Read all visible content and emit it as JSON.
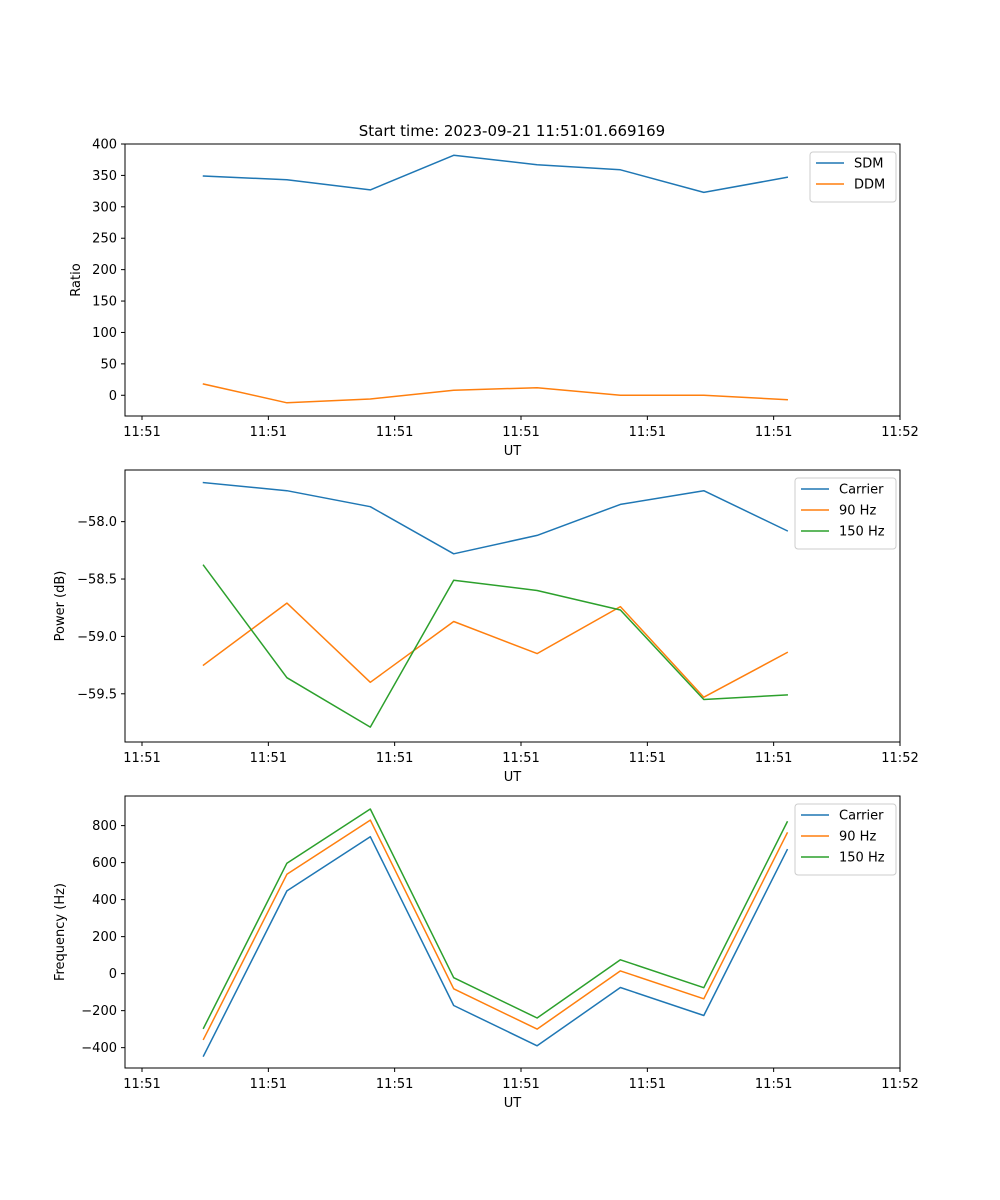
{
  "figure": {
    "title": "Start time: 2023-09-21 11:51:01.669169"
  },
  "chart_data": [
    {
      "type": "line",
      "ylabel": "Ratio",
      "xlabel": "UT",
      "xlim": [
        0,
        1
      ],
      "ylim": [
        -33,
        400
      ],
      "x_ticks": [
        0.0,
        0.1667,
        0.3333,
        0.5,
        0.6667,
        0.8333,
        1.0
      ],
      "x_tick_labels": [
        "11:51",
        "11:51",
        "11:51",
        "11:51",
        "11:51",
        "11:51",
        "11:52"
      ],
      "y_ticks": [
        0,
        50,
        100,
        150,
        200,
        250,
        300,
        350,
        400
      ],
      "y_tick_labels": [
        "0",
        "50",
        "100",
        "150",
        "200",
        "250",
        "300",
        "350",
        "400"
      ],
      "legend_position": "top-right",
      "x": [
        0.0812,
        0.1912,
        0.3012,
        0.4112,
        0.5212,
        0.6312,
        0.7412,
        0.8512
      ],
      "series": [
        {
          "name": "SDM",
          "color": "#1f77b4",
          "values": [
            349,
            343,
            327,
            382,
            367,
            359,
            323,
            347
          ]
        },
        {
          "name": "DDM",
          "color": "#ff7f0e",
          "values": [
            18,
            -12,
            -6,
            8,
            12,
            0,
            0,
            -7
          ]
        }
      ]
    },
    {
      "type": "line",
      "ylabel": "Power (dB)",
      "xlabel": "UT",
      "xlim": [
        0,
        1
      ],
      "ylim": [
        -59.92,
        -57.55
      ],
      "x_ticks": [
        0.0,
        0.1667,
        0.3333,
        0.5,
        0.6667,
        0.8333,
        1.0
      ],
      "x_tick_labels": [
        "11:51",
        "11:51",
        "11:51",
        "11:51",
        "11:51",
        "11:51",
        "11:52"
      ],
      "y_ticks": [
        -59.5,
        -59.0,
        -58.5,
        -58.0
      ],
      "y_tick_labels": [
        "−59.5",
        "−59.0",
        "−58.5",
        "−58.0"
      ],
      "legend_position": "top-right",
      "x": [
        0.0812,
        0.1912,
        0.3012,
        0.4112,
        0.5212,
        0.6312,
        0.7412,
        0.8512
      ],
      "series": [
        {
          "name": "Carrier",
          "color": "#1f77b4",
          "values": [
            -57.66,
            -57.73,
            -57.87,
            -58.28,
            -58.12,
            -57.85,
            -57.73,
            -58.08
          ]
        },
        {
          "name": "90 Hz",
          "color": "#ff7f0e",
          "values": [
            -59.25,
            -58.71,
            -59.4,
            -58.87,
            -59.15,
            -58.74,
            -59.53,
            -59.14
          ]
        },
        {
          "name": "150 Hz",
          "color": "#2ca02c",
          "values": [
            -58.38,
            -59.36,
            -59.79,
            -58.51,
            -58.6,
            -58.77,
            -59.55,
            -59.51
          ]
        }
      ]
    },
    {
      "type": "line",
      "ylabel": "Frequency (Hz)",
      "xlabel": "UT",
      "xlim": [
        0,
        1
      ],
      "ylim": [
        -510,
        960
      ],
      "x_ticks": [
        0.0,
        0.1667,
        0.3333,
        0.5,
        0.6667,
        0.8333,
        1.0
      ],
      "x_tick_labels": [
        "11:51",
        "11:51",
        "11:51",
        "11:51",
        "11:51",
        "11:51",
        "11:52"
      ],
      "y_ticks": [
        -400,
        -200,
        0,
        200,
        400,
        600,
        800
      ],
      "y_tick_labels": [
        "−400",
        "−200",
        "0",
        "200",
        "400",
        "600",
        "800"
      ],
      "legend_position": "top-right",
      "x": [
        0.0812,
        0.1912,
        0.3012,
        0.4112,
        0.5212,
        0.6312,
        0.7412,
        0.8512
      ],
      "series": [
        {
          "name": "Carrier",
          "color": "#1f77b4",
          "values": [
            -445,
            447,
            740,
            -172,
            -390,
            -75,
            -226,
            670
          ]
        },
        {
          "name": "90 Hz",
          "color": "#ff7f0e",
          "values": [
            -355,
            537,
            830,
            -82,
            -300,
            15,
            -136,
            760
          ]
        },
        {
          "name": "150 Hz",
          "color": "#2ca02c",
          "values": [
            -295,
            597,
            890,
            -22,
            -240,
            75,
            -76,
            820
          ]
        }
      ]
    }
  ]
}
